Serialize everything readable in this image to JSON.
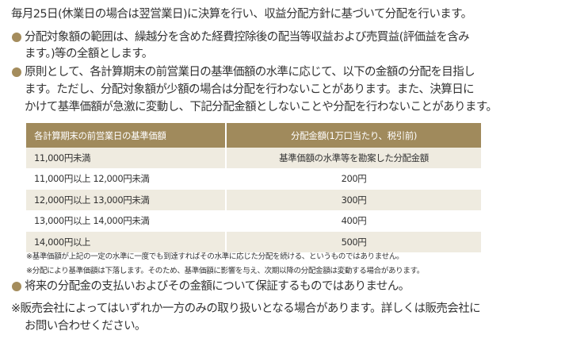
{
  "intro": "毎月25日(休業日の場合は翌営業日)に決算を行い、収益分配方針に基づいて分配を行います。",
  "bullets": [
    {
      "lines": [
        "分配対象額の範囲は、繰越分を含めた経費控除後の配当等収益および売買益(評価益を含み",
        "ます。)等の全額とします。"
      ]
    },
    {
      "lines": [
        "原則として、各計算期末の前営業日の基準価額の水準に応じて、以下の金額の分配を目指し",
        "ます。ただし、分配対象額が少額の場合は分配を行わないことがあります。また、決算日に",
        "かけて基準価額が急激に変動し、下記分配金額としないことや分配を行わないことがあります。"
      ]
    },
    {
      "lines": [
        "将来の分配金の支払いおよびその金額について保証するものではありません。"
      ]
    }
  ],
  "table": {
    "headers": [
      "各計算期末の前営業日の基準価額",
      "分配金額(1万口当たり、税引前)"
    ],
    "rows": [
      [
        "11,000円未満",
        "基準価額の水準等を勘案した分配金額"
      ],
      [
        "11,000円以上 12,000円未満",
        "200円"
      ],
      [
        "12,000円以上 13,000円未満",
        "300円"
      ],
      [
        "13,000円以上 14,000円未満",
        "400円"
      ],
      [
        "14,000円以上",
        "500円"
      ]
    ]
  },
  "notes": [
    "※基準価額が上記の一定の水準に一度でも到達すればその水準に応じた分配を続ける、というものではありません。",
    "※分配により基準価額は下落します。そのため、基準価額に影響を与え、次期以降の分配金額は変動する場合があります。"
  ],
  "footer": [
    "※販売会社によってはいずれか一方のみの取り扱いとなる場合があります。詳しくは販売会社に",
    "お問い合わせください。"
  ],
  "colors": {
    "accent": "#a08a5c",
    "row_alt": "#efebe0"
  }
}
